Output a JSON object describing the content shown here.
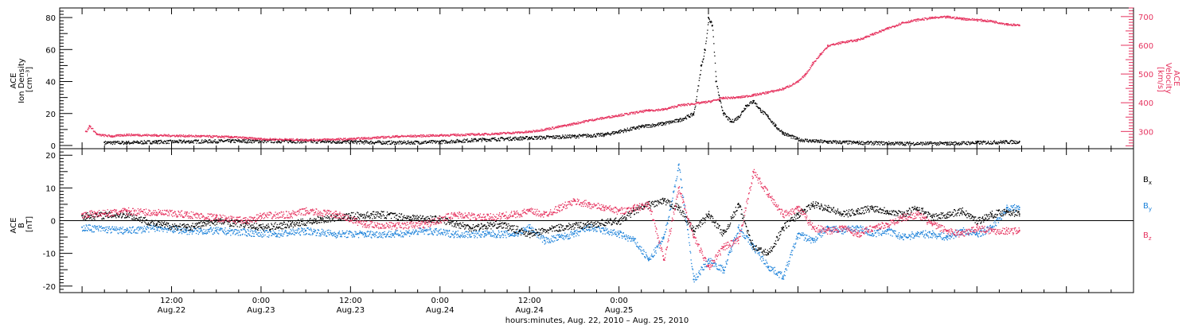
{
  "chart_data": [
    {
      "type": "scatter",
      "panel": "top",
      "ylabel_left_lines": [
        "ACE",
        "Ion Density",
        "[cm⁻³]"
      ],
      "ylabel_right_lines": [
        "ACE",
        "Velocity",
        "[km/s]"
      ],
      "ylim_left": [
        -2,
        86
      ],
      "ylim_right": [
        240,
        730
      ],
      "yticks_left": [
        "0",
        "20",
        "40",
        "60",
        "80"
      ],
      "yticks_right": [
        "300",
        "400",
        "500",
        "600",
        "700"
      ],
      "grid": false,
      "series": [
        {
          "color": "#000000",
          "axis": "left",
          "points": [
            [
              3,
              2
            ],
            [
              6,
              2
            ],
            [
              10,
              2.5
            ],
            [
              20,
              3
            ],
            [
              28,
              3
            ],
            [
              36,
              2.5
            ],
            [
              42,
              2
            ],
            [
              48,
              2.5
            ],
            [
              54,
              4
            ],
            [
              60,
              5
            ],
            [
              66,
              6
            ],
            [
              70,
              7
            ],
            [
              72,
              9
            ],
            [
              75,
              12
            ],
            [
              78,
              14
            ],
            [
              80,
              16
            ],
            [
              82,
              20
            ],
            [
              83,
              50
            ],
            [
              83.5,
              60
            ],
            [
              84,
              80
            ],
            [
              84.5,
              75
            ],
            [
              85,
              40
            ],
            [
              85.5,
              28
            ],
            [
              86,
              20
            ],
            [
              87,
              15
            ],
            [
              88,
              18
            ],
            [
              89,
              25
            ],
            [
              90,
              28
            ],
            [
              91,
              22
            ],
            [
              92,
              18
            ],
            [
              93,
              12
            ],
            [
              94,
              8
            ],
            [
              95,
              6
            ],
            [
              96,
              4
            ],
            [
              98,
              3
            ],
            [
              100,
              2.5
            ],
            [
              104,
              2
            ],
            [
              110,
              1.5
            ],
            [
              116,
              1.5
            ],
            [
              120,
              2
            ],
            [
              124,
              2.5
            ],
            [
              125.7,
              2.5
            ]
          ]
        },
        {
          "color": "#e6335f",
          "axis": "right",
          "points": [
            [
              0.5,
              300
            ],
            [
              1,
              320
            ],
            [
              2,
              290
            ],
            [
              4,
              285
            ],
            [
              6,
              290
            ],
            [
              10,
              288
            ],
            [
              16,
              285
            ],
            [
              20,
              282
            ],
            [
              24,
              275
            ],
            [
              30,
              272
            ],
            [
              36,
              275
            ],
            [
              42,
              284
            ],
            [
              48,
              288
            ],
            [
              54,
              292
            ],
            [
              60,
              300
            ],
            [
              64,
              318
            ],
            [
              68,
              340
            ],
            [
              72,
              358
            ],
            [
              76,
              375
            ],
            [
              78,
              378
            ],
            [
              80,
              392
            ],
            [
              84,
              405
            ],
            [
              86,
              418
            ],
            [
              88,
              420
            ],
            [
              90,
              428
            ],
            [
              92,
              438
            ],
            [
              94,
              450
            ],
            [
              96,
              475
            ],
            [
              97,
              500
            ],
            [
              98,
              540
            ],
            [
              99,
              570
            ],
            [
              100,
              600
            ],
            [
              102,
              612
            ],
            [
              104,
              620
            ],
            [
              106,
              640
            ],
            [
              108,
              660
            ],
            [
              110,
              680
            ],
            [
              112,
              690
            ],
            [
              114,
              697
            ],
            [
              116,
              700
            ],
            [
              118,
              694
            ],
            [
              120,
              690
            ],
            [
              122,
              685
            ],
            [
              124,
              675
            ],
            [
              125.7,
              670
            ]
          ]
        }
      ]
    },
    {
      "type": "scatter",
      "panel": "bottom",
      "ylabel_left_lines": [
        "ACE",
        "B",
        "[nT]"
      ],
      "ylim": [
        -22,
        22
      ],
      "yticks": [
        "-20",
        "-10",
        "0",
        "10",
        "20"
      ],
      "zero_line": true,
      "grid": false,
      "series": [
        {
          "name": "Bx",
          "color": "#000000",
          "points": [
            [
              0,
              1.5
            ],
            [
              6,
              2
            ],
            [
              10,
              -1
            ],
            [
              14,
              -2
            ],
            [
              18,
              0
            ],
            [
              22,
              -1
            ],
            [
              24,
              -2
            ],
            [
              28,
              -1
            ],
            [
              32,
              0.5
            ],
            [
              36,
              1.5
            ],
            [
              40,
              2
            ],
            [
              44,
              1
            ],
            [
              48,
              0.5
            ],
            [
              52,
              -2
            ],
            [
              56,
              -1
            ],
            [
              60,
              -4
            ],
            [
              64,
              -2
            ],
            [
              68,
              -1
            ],
            [
              72,
              0
            ],
            [
              74,
              3
            ],
            [
              76,
              5
            ],
            [
              78,
              6
            ],
            [
              80,
              4
            ],
            [
              82,
              -3
            ],
            [
              84,
              2
            ],
            [
              86,
              -4
            ],
            [
              88,
              5
            ],
            [
              90,
              -8
            ],
            [
              92,
              -10
            ],
            [
              94,
              -2
            ],
            [
              96,
              2
            ],
            [
              98,
              5
            ],
            [
              100,
              4
            ],
            [
              102,
              2
            ],
            [
              104,
              3
            ],
            [
              106,
              4
            ],
            [
              108,
              3
            ],
            [
              110,
              2
            ],
            [
              112,
              4
            ],
            [
              114,
              1
            ],
            [
              116,
              2
            ],
            [
              118,
              3
            ],
            [
              120,
              0
            ],
            [
              122,
              2
            ],
            [
              124,
              3
            ],
            [
              125.7,
              2
            ]
          ]
        },
        {
          "name": "By",
          "color": "#1a80d9",
          "points": [
            [
              0,
              -2
            ],
            [
              6,
              -3
            ],
            [
              10,
              -2
            ],
            [
              14,
              -3
            ],
            [
              18,
              -3
            ],
            [
              22,
              -3.5
            ],
            [
              26,
              -4
            ],
            [
              30,
              -3
            ],
            [
              34,
              -4
            ],
            [
              38,
              -4
            ],
            [
              42,
              -4
            ],
            [
              46,
              -3
            ],
            [
              50,
              -4
            ],
            [
              54,
              -4
            ],
            [
              58,
              -4
            ],
            [
              60,
              -2
            ],
            [
              62,
              -6
            ],
            [
              64,
              -5
            ],
            [
              66,
              -4
            ],
            [
              68,
              -2
            ],
            [
              70,
              -3
            ],
            [
              72,
              -4
            ],
            [
              74,
              -6
            ],
            [
              76,
              -12
            ],
            [
              78,
              -5
            ],
            [
              80,
              17
            ],
            [
              82,
              -18
            ],
            [
              84,
              -12
            ],
            [
              86,
              -15
            ],
            [
              88,
              -2
            ],
            [
              90,
              -8
            ],
            [
              92,
              -14
            ],
            [
              94,
              -17
            ],
            [
              96,
              -4
            ],
            [
              98,
              -6
            ],
            [
              100,
              -2
            ],
            [
              102,
              -3
            ],
            [
              104,
              -2
            ],
            [
              106,
              -4
            ],
            [
              108,
              -3
            ],
            [
              110,
              -5
            ],
            [
              112,
              -4
            ],
            [
              114,
              -4
            ],
            [
              116,
              -5
            ],
            [
              118,
              -3
            ],
            [
              120,
              -4
            ],
            [
              122,
              -2
            ],
            [
              124,
              4
            ],
            [
              125.7,
              4
            ]
          ]
        },
        {
          "name": "Bz",
          "color": "#e6335f",
          "points": [
            [
              0,
              2
            ],
            [
              4,
              2.5
            ],
            [
              6,
              3
            ],
            [
              10,
              2.5
            ],
            [
              14,
              2
            ],
            [
              18,
              1
            ],
            [
              22,
              0
            ],
            [
              24,
              1.5
            ],
            [
              28,
              2
            ],
            [
              30,
              3
            ],
            [
              34,
              2
            ],
            [
              38,
              -1
            ],
            [
              42,
              -1.5
            ],
            [
              46,
              -1
            ],
            [
              50,
              2
            ],
            [
              54,
              1
            ],
            [
              58,
              2
            ],
            [
              60,
              3
            ],
            [
              62,
              2
            ],
            [
              64,
              4
            ],
            [
              66,
              6
            ],
            [
              68,
              5
            ],
            [
              70,
              4
            ],
            [
              72,
              3
            ],
            [
              74,
              4
            ],
            [
              76,
              5
            ],
            [
              78,
              -12
            ],
            [
              80,
              10
            ],
            [
              82,
              -5
            ],
            [
              84,
              -14
            ],
            [
              86,
              -8
            ],
            [
              88,
              -6
            ],
            [
              90,
              15
            ],
            [
              92,
              8
            ],
            [
              94,
              2
            ],
            [
              96,
              4
            ],
            [
              98,
              -2
            ],
            [
              100,
              -3
            ],
            [
              102,
              -2
            ],
            [
              104,
              -4
            ],
            [
              106,
              -2
            ],
            [
              108,
              -1
            ],
            [
              110,
              1
            ],
            [
              112,
              2
            ],
            [
              114,
              -1
            ],
            [
              116,
              -3
            ],
            [
              118,
              -4
            ],
            [
              120,
              -2
            ],
            [
              122,
              -3
            ],
            [
              124,
              -3
            ],
            [
              125.7,
              -3
            ]
          ]
        }
      ],
      "legend": [
        "Bx",
        "By",
        "Bz"
      ]
    }
  ],
  "x_axis": {
    "xlim_hours": [
      -3,
      141
    ],
    "ticks": [
      {
        "h": 12,
        "time": "12:00",
        "date": "Aug.22"
      },
      {
        "h": 24,
        "time": "0:00",
        "date": "Aug.23"
      },
      {
        "h": 36,
        "time": "12:00",
        "date": "Aug.23"
      },
      {
        "h": 48,
        "time": "0:00",
        "date": "Aug.24"
      },
      {
        "h": 60,
        "time": "12:00",
        "date": "Aug.24"
      },
      {
        "h": 72,
        "time": "0:00",
        "date": "Aug.25"
      }
    ],
    "xlabel": "hours:minutes, Aug. 22, 2010 – Aug. 25, 2010"
  },
  "legend": {
    "bx_main": "B",
    "bx_sub": "x",
    "by_main": "B",
    "by_sub": "y",
    "bz_main": "B",
    "bz_sub": "z"
  },
  "colors": {
    "black": "#000000",
    "pink": "#e6335f",
    "blue": "#1a80d9"
  }
}
